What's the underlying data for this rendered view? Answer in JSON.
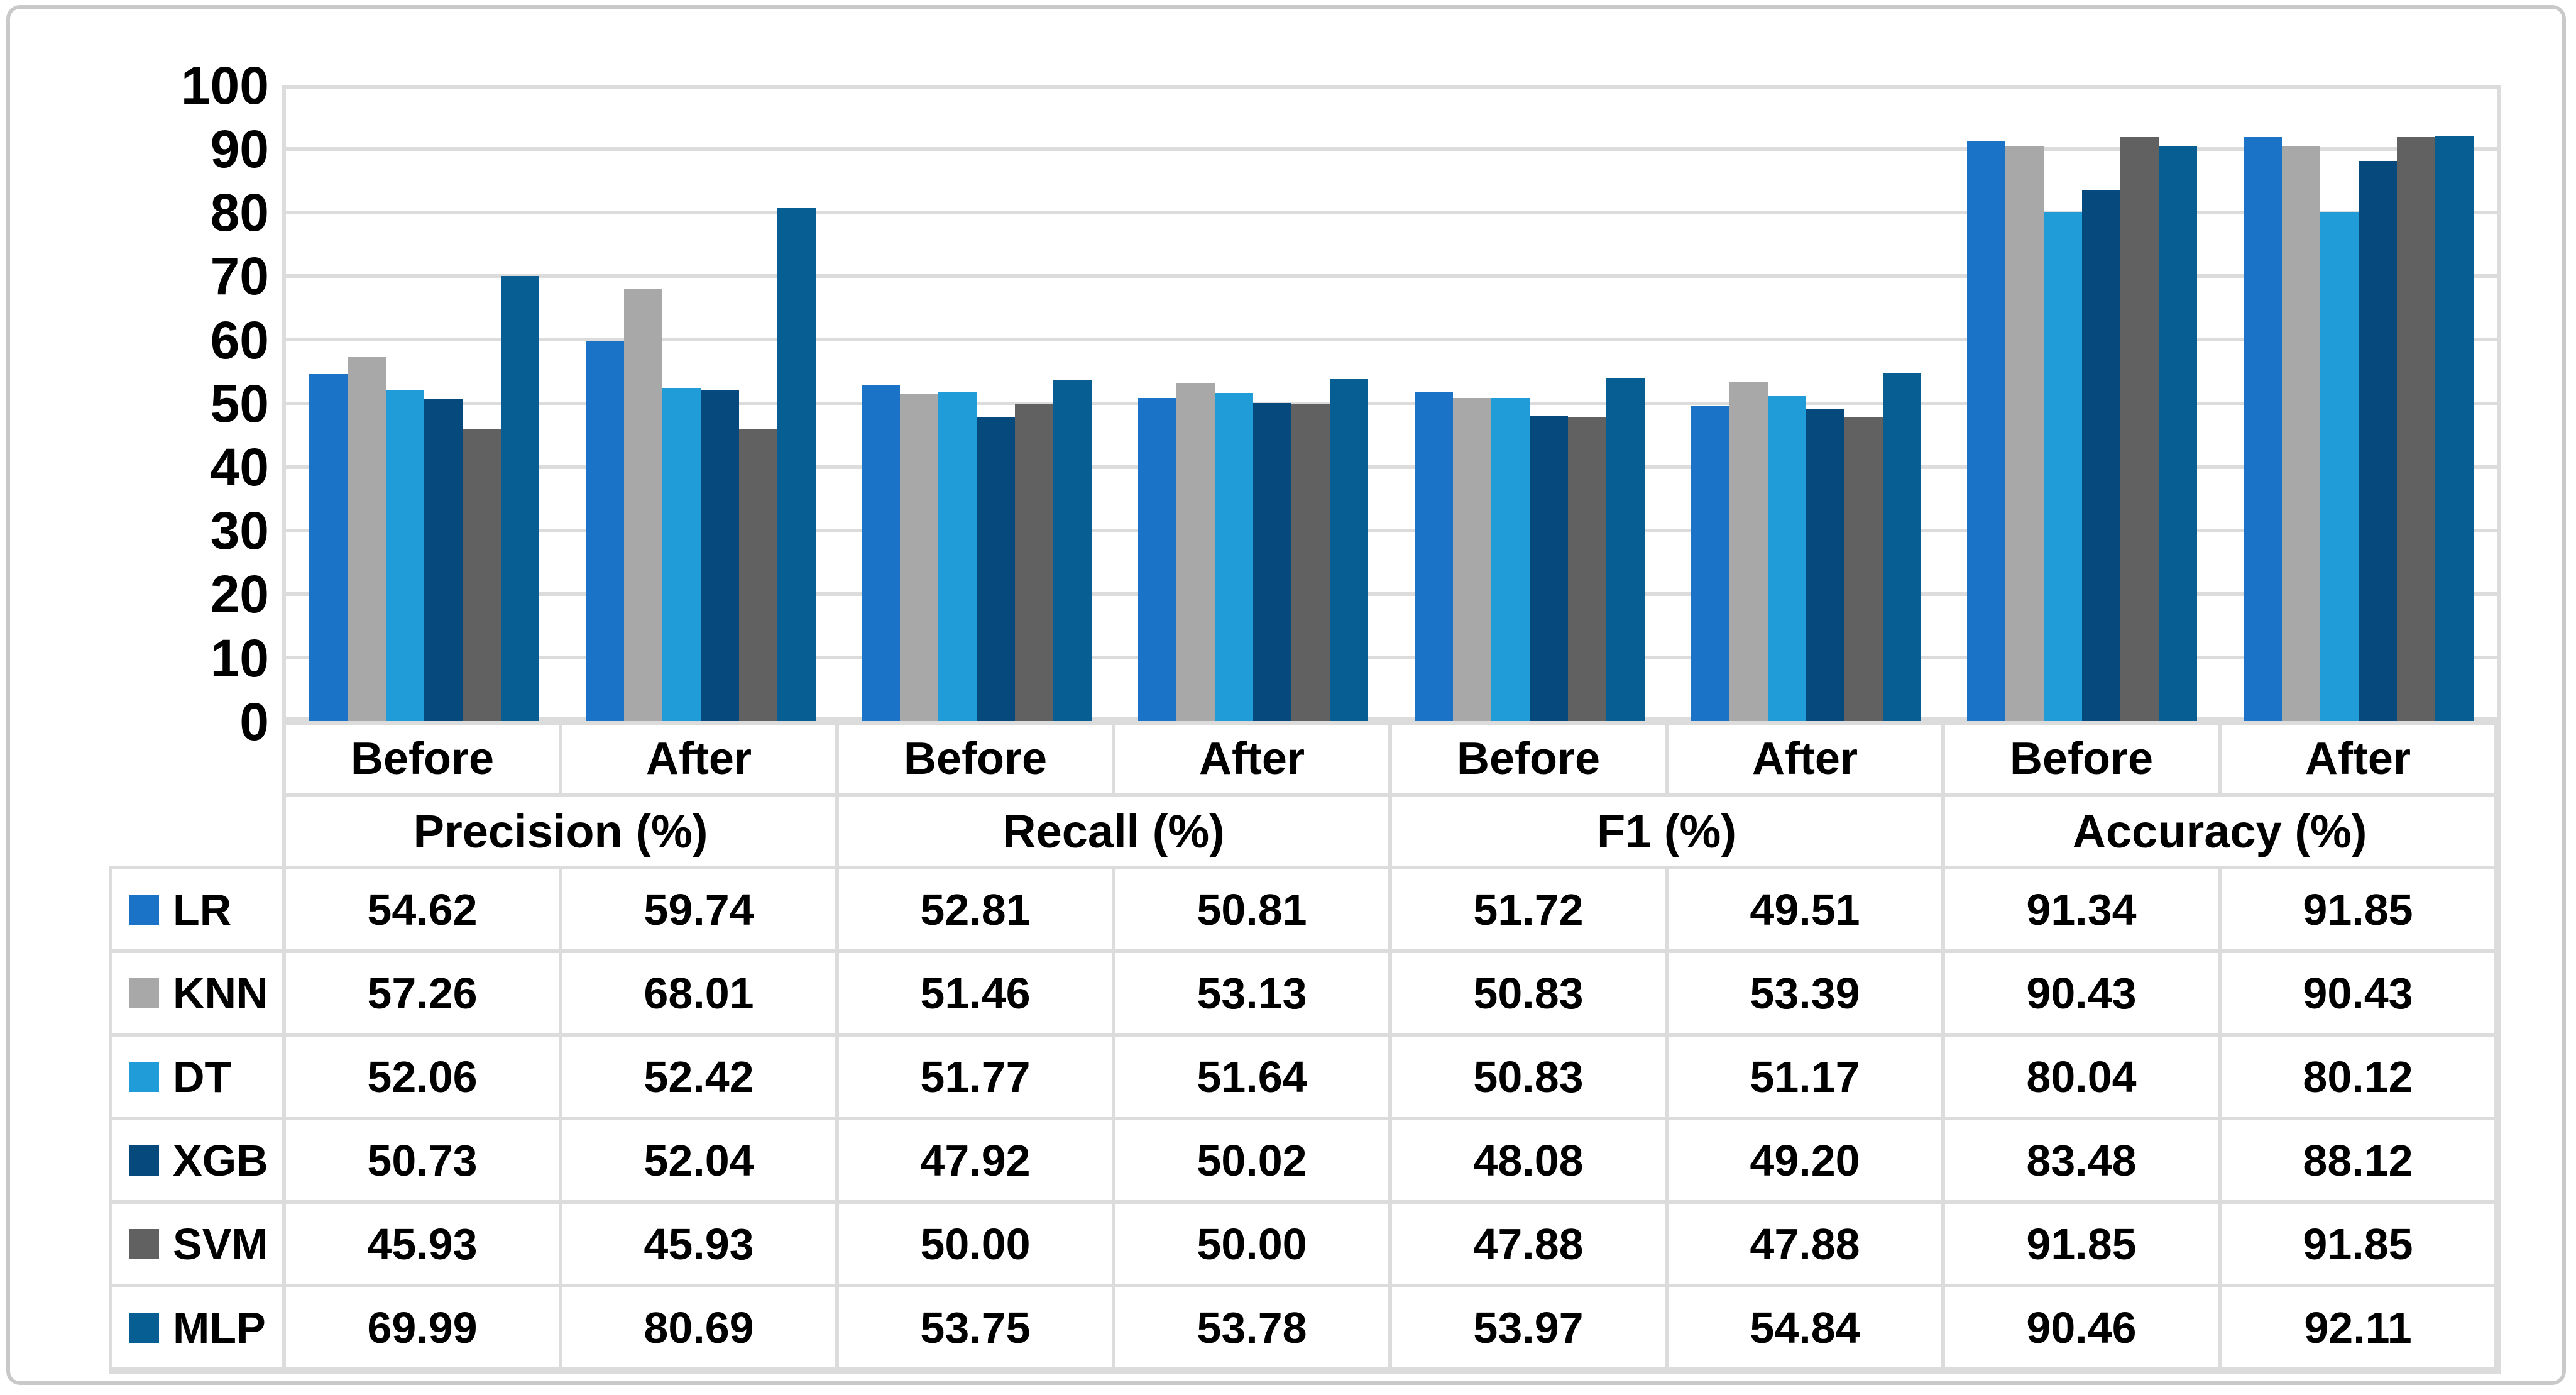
{
  "chart_data": {
    "type": "bar",
    "title": "",
    "xlabel": "",
    "ylabel": "",
    "ylim": [
      0,
      100
    ],
    "ytick_step": 10,
    "yticks": [
      "100",
      "90",
      "80",
      "70",
      "60",
      "50",
      "40",
      "30",
      "20",
      "10",
      "0"
    ],
    "grid": "horizontal",
    "grid_color": "#dcdcdc",
    "legend_position": "table-left-column",
    "group_labels": [
      "Before",
      "After",
      "Before",
      "After",
      "Before",
      "After",
      "Before",
      "After"
    ],
    "metric_labels": [
      "Precision (%)",
      "Recall (%)",
      "F1 (%)",
      "Accuracy (%)"
    ],
    "series": [
      {
        "name": "LR",
        "color": "#1b73c7",
        "values": [
          "54.62",
          "59.74",
          "52.81",
          "50.81",
          "51.72",
          "49.51",
          "91.34",
          "91.85"
        ]
      },
      {
        "name": "KNN",
        "color": "#a8a8a8",
        "values": [
          "57.26",
          "68.01",
          "51.46",
          "53.13",
          "50.83",
          "53.39",
          "90.43",
          "90.43"
        ]
      },
      {
        "name": "DT",
        "color": "#209dd8",
        "values": [
          "52.06",
          "52.42",
          "51.77",
          "51.64",
          "50.83",
          "51.17",
          "80.04",
          "80.12"
        ]
      },
      {
        "name": "XGB",
        "color": "#064a7d",
        "values": [
          "50.73",
          "52.04",
          "47.92",
          "50.02",
          "48.08",
          "49.20",
          "83.48",
          "88.12"
        ]
      },
      {
        "name": "SVM",
        "color": "#616161",
        "values": [
          "45.93",
          "45.93",
          "50.00",
          "50.00",
          "47.88",
          "47.88",
          "91.85",
          "91.85"
        ]
      },
      {
        "name": "MLP",
        "color": "#065e92",
        "values": [
          "69.99",
          "80.69",
          "53.75",
          "53.78",
          "53.97",
          "54.84",
          "90.46",
          "92.11"
        ]
      }
    ]
  }
}
